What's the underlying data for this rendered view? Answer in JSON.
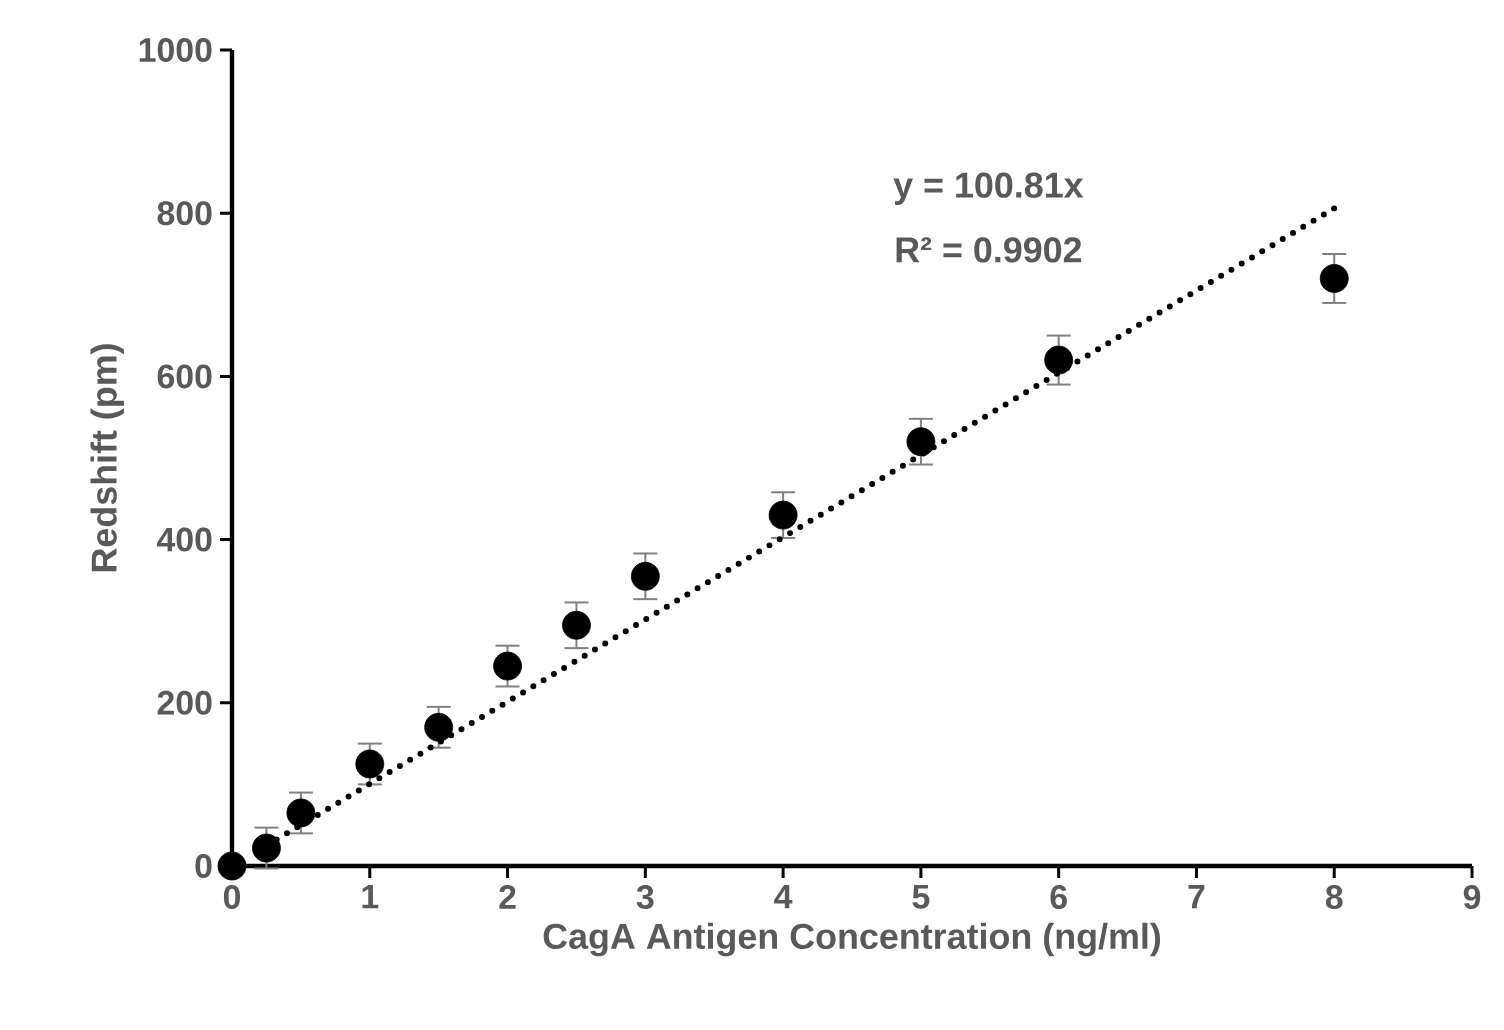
{
  "chart_data": {
    "type": "scatter",
    "xlabel": "CagA Antigen Concentration (ng/ml)",
    "ylabel": "Redshift (pm)",
    "xlim": [
      0,
      9
    ],
    "xticks": [
      0,
      1,
      2,
      3,
      4,
      5,
      6,
      7,
      8,
      9
    ],
    "ylim": [
      0,
      1000
    ],
    "yticks": [
      0,
      200,
      400,
      600,
      800,
      1000
    ],
    "grid": false,
    "series": [
      {
        "color": "#000000",
        "marker": "circle",
        "x": [
          0,
          0.25,
          0.5,
          1,
          1.5,
          2,
          2.5,
          3,
          4,
          5,
          6,
          8
        ],
        "values": [
          0,
          22,
          65,
          125,
          170,
          245,
          295,
          355,
          430,
          520,
          620,
          720
        ],
        "errors": [
          null,
          25,
          25,
          25,
          25,
          25,
          28,
          28,
          28,
          28,
          30,
          30
        ]
      },
      {
        "type": "line",
        "color": "#000000",
        "marker": "none",
        "line_style": "dotted",
        "x": [
          0.25,
          8
        ],
        "values": [
          25,
          806
        ]
      }
    ],
    "annotations": [
      "y = 100.81x",
      "R² = 0.9902"
    ]
  }
}
